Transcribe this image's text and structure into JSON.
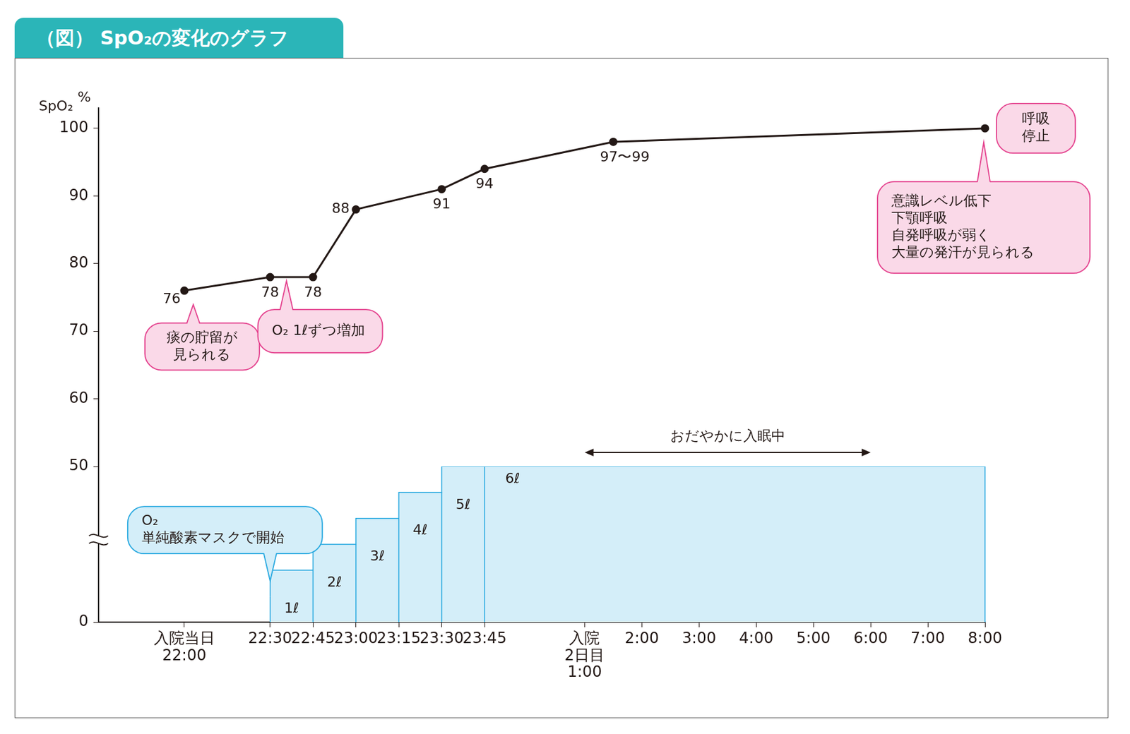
{
  "chart_data": {
    "type": "line",
    "title": "（図） SpO₂の変化のグラフ",
    "y_label": "SpO₂",
    "y_unit": "%",
    "grid": false,
    "data_labels": true,
    "categories": [
      null,
      null,
      null,
      null,
      null,
      null,
      "入院当日\n22:00",
      null,
      null,
      null,
      null,
      null,
      "22:30",
      null,
      null,
      "22:45",
      null,
      null,
      "23:00",
      null,
      null,
      "23:15",
      null,
      null,
      "23:30",
      null,
      null,
      "23:45",
      null,
      null,
      null,
      null,
      null,
      null,
      "入院\n2日目\n1:00",
      null,
      null,
      null,
      "2:00",
      null,
      null,
      null,
      "3:00",
      null,
      null,
      null,
      "4:00",
      null,
      null,
      null,
      "5:00",
      null,
      null,
      null,
      "6:00",
      null,
      null,
      null,
      "7:00",
      null,
      null,
      null,
      "8:00"
    ],
    "ylim": [
      50,
      103
    ],
    "yticks": [
      50,
      60,
      70,
      80,
      90,
      100
    ],
    "y2lim": [
      0,
      6
    ],
    "y2ticks": [
      0
    ],
    "series": [
      {
        "color": "#231815",
        "marker": "circle",
        "values": [
          null,
          null,
          null,
          null,
          null,
          null,
          76,
          null,
          null,
          null,
          null,
          null,
          78,
          null,
          null,
          78,
          null,
          null,
          88,
          null,
          null,
          null,
          null,
          null,
          91,
          null,
          null,
          94,
          null,
          null,
          null,
          null,
          null,
          null,
          null,
          null,
          98,
          null,
          null,
          null,
          null,
          null,
          null,
          null,
          null,
          null,
          null,
          null,
          null,
          null,
          null,
          null,
          null,
          null,
          null,
          null,
          null,
          null,
          null,
          null,
          null,
          null,
          100
        ],
        "value_labels": [
          null,
          null,
          null,
          null,
          null,
          null,
          "76",
          null,
          null,
          null,
          null,
          null,
          "78",
          null,
          null,
          "78",
          null,
          null,
          "88",
          null,
          null,
          null,
          null,
          null,
          "91",
          null,
          null,
          "94",
          null,
          null,
          null,
          null,
          null,
          null,
          null,
          null,
          "97〜99",
          null,
          null,
          null,
          null,
          null,
          null,
          null,
          null,
          null,
          null,
          null,
          null,
          null,
          null,
          null,
          null,
          null,
          null,
          null,
          null,
          null,
          null,
          null,
          null,
          null,
          null
        ]
      },
      {
        "color": "#29a9e0",
        "type": "step_area",
        "axis": "y2",
        "values": [
          null,
          null,
          null,
          null,
          null,
          null,
          null,
          null,
          null,
          null,
          null,
          null,
          1,
          null,
          null,
          2,
          null,
          null,
          3,
          null,
          null,
          4,
          null,
          null,
          5,
          null,
          null,
          6,
          null,
          null,
          null,
          null,
          null,
          null,
          null,
          null,
          null,
          null,
          null,
          null,
          null,
          null,
          null,
          null,
          null,
          null,
          null,
          null,
          null,
          null,
          null,
          null,
          null,
          null,
          null,
          null,
          null,
          null,
          null,
          null,
          null,
          null,
          6
        ],
        "value_labels": [
          null,
          null,
          null,
          null,
          null,
          null,
          null,
          null,
          null,
          null,
          null,
          null,
          "1ℓ",
          null,
          null,
          "2ℓ",
          null,
          null,
          "3ℓ",
          null,
          null,
          "4ℓ",
          null,
          null,
          "5ℓ",
          null,
          null,
          "6ℓ",
          null,
          null,
          null,
          null,
          null,
          null,
          null,
          null,
          null,
          null,
          null,
          null,
          null,
          null,
          null,
          null,
          null,
          null,
          null,
          null,
          null,
          null,
          null,
          null,
          null,
          null,
          null,
          null,
          null,
          null,
          null,
          null,
          null,
          null,
          null
        ]
      }
    ],
    "annotations": [
      {
        "type": "callout",
        "text": "痰の貯留が\n見られる",
        "at": "入院当日\n22:00",
        "color": "#e4408d"
      },
      {
        "type": "callout",
        "text": "O₂ 1ℓずつ増加",
        "from": "22:30",
        "to": "22:45",
        "color": "#e4408d"
      },
      {
        "type": "callout",
        "text": "呼吸\n停止",
        "at": "8:00",
        "color": "#e4408d"
      },
      {
        "type": "callout",
        "text": "意識レベル低下\n下顎呼吸\n自発呼吸が弱く\n大量の発汗が見られる",
        "at": "8:00",
        "color": "#e4408d"
      },
      {
        "type": "callout",
        "text": "O₂\n単純酸素マスクで開始",
        "at": "22:30",
        "axis": "y2",
        "color": "#29a9e0"
      },
      {
        "type": "arrow",
        "text": "おだやかに入眠中",
        "from": "入院\n2日目\n1:00",
        "to": "6:00",
        "color": "#231815"
      }
    ]
  }
}
